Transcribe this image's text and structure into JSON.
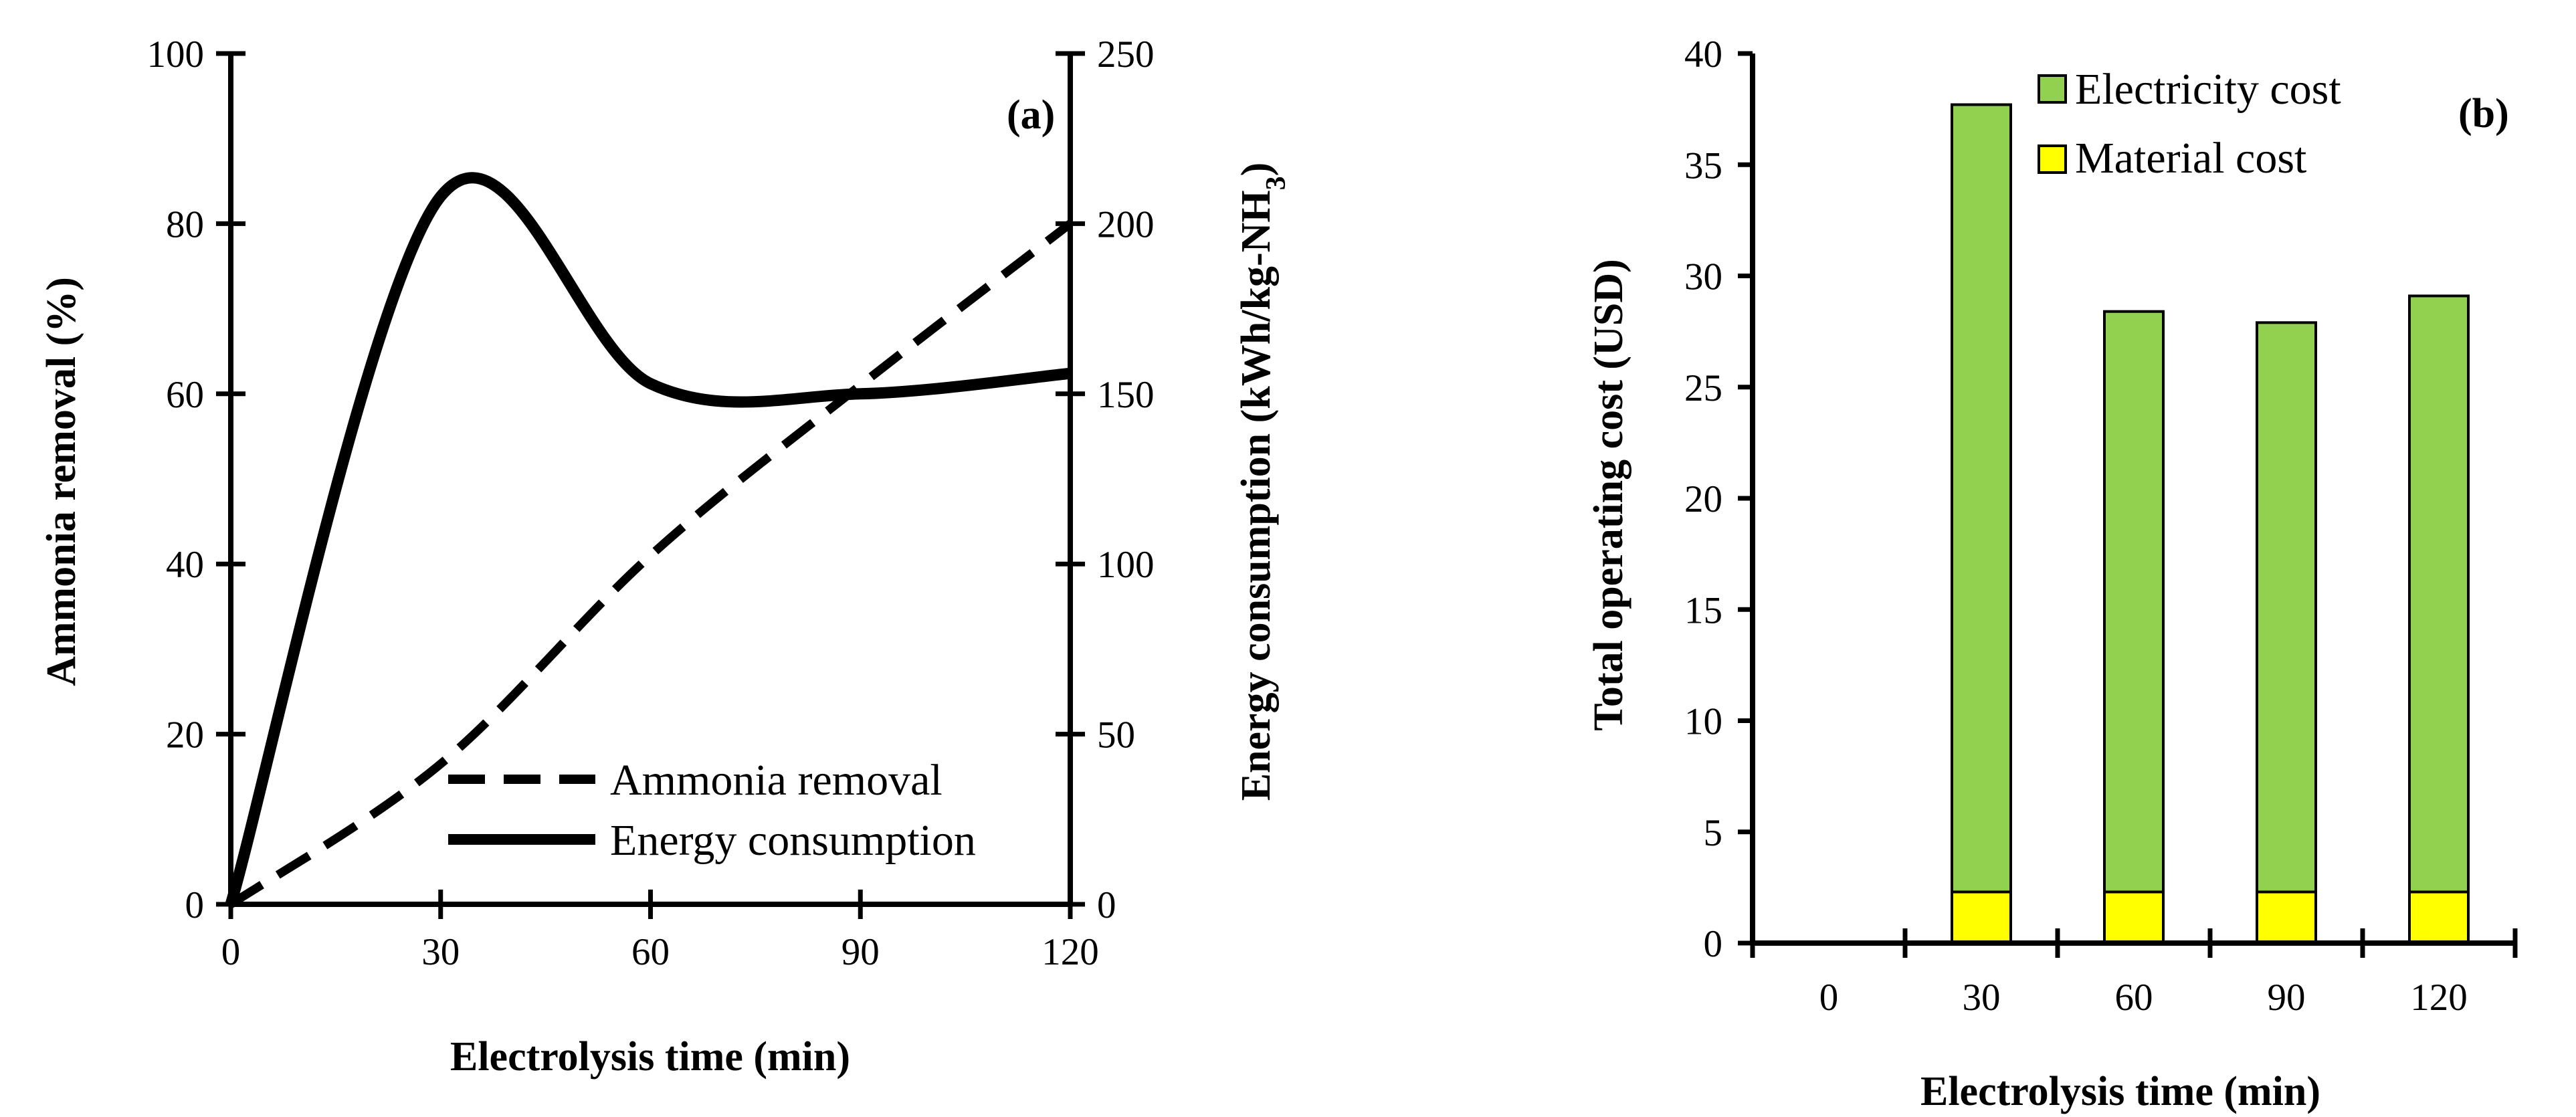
{
  "chart_data": [
    {
      "type": "line",
      "panel_label": "(a)",
      "xlabel": "Electrolysis time (min)",
      "ylabel": "Ammonia removal (%)",
      "y2label_main": "Energy consumption (kWh/kg-NH",
      "y2label_sub": "3",
      "y2label_end": ")",
      "xlim": [
        0,
        120
      ],
      "ylim": [
        0,
        100
      ],
      "y2lim": [
        0,
        250
      ],
      "x_ticks": [
        "0",
        "30",
        "60",
        "90",
        "120"
      ],
      "y_ticks": [
        "0",
        "20",
        "40",
        "60",
        "80",
        "100"
      ],
      "y2_ticks": [
        "0",
        "50",
        "100",
        "150",
        "200",
        "250"
      ],
      "series": [
        {
          "name": "Ammonia removal",
          "axis": "left",
          "style": "dashed",
          "x": [
            0,
            30,
            60,
            90,
            120
          ],
          "y": [
            0,
            16.5,
            41,
            61,
            80
          ]
        },
        {
          "name": "Energy consumption",
          "axis": "right",
          "style": "solid",
          "x": [
            0,
            30,
            60,
            90,
            120
          ],
          "y": [
            0,
            208,
            153,
            150,
            156
          ]
        }
      ],
      "legend": [
        "Ammonia removal",
        "Energy consumption"
      ],
      "legend_position": "lower-right"
    },
    {
      "type": "bar",
      "stacked": true,
      "panel_label": "(b)",
      "xlabel": "Electrolysis time (min)",
      "ylabel": "Total operating cost (USD)",
      "ylim": [
        0,
        40
      ],
      "y_ticks": [
        "0",
        "5",
        "10",
        "15",
        "20",
        "25",
        "30",
        "35",
        "40"
      ],
      "categories": [
        "0",
        "30",
        "60",
        "90",
        "120"
      ],
      "series": [
        {
          "name": "Material cost",
          "color": "#ffff00",
          "values": [
            0,
            2.3,
            2.3,
            2.3,
            2.3
          ]
        },
        {
          "name": "Electricity cost",
          "color": "#92d050",
          "values": [
            0,
            35.4,
            26.1,
            25.6,
            26.8
          ]
        }
      ],
      "legend": [
        "Electricity cost",
        "Material cost"
      ],
      "legend_position": "top-left"
    }
  ]
}
